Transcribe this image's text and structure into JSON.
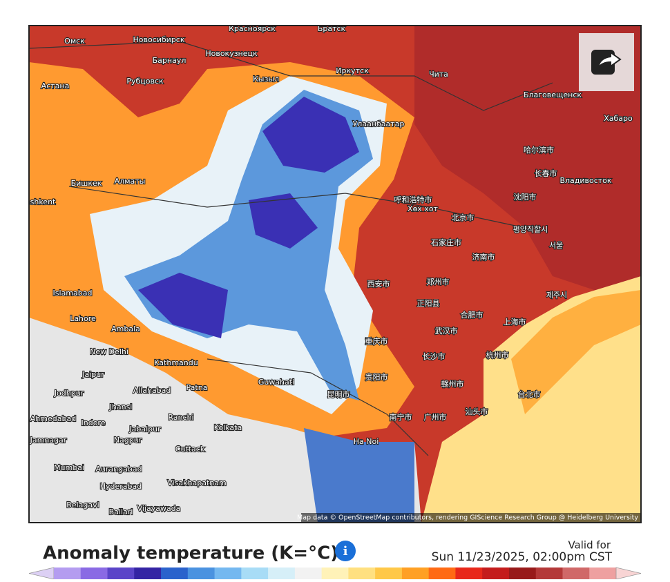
{
  "map": {
    "cities": [
      "Омск",
      "Новосибирск",
      "Красноярск",
      "Братск",
      "Барнаул",
      "Новокузнецк",
      "Кызыл",
      "Иркутск",
      "Чита",
      "Астана",
      "Рубцовск",
      "Благовещенск",
      "Хабаро",
      "Улаанбаатар",
      "哈尔滨市",
      "长春市",
      "Владивосток",
      "Бишкек",
      "Алматы",
      "shkent",
      "呼和浩特市",
      "Хөх хот",
      "北京市",
      "沈阳市",
      "평양직할시",
      "서울",
      "石家庄市",
      "济南市",
      "西安市",
      "郑州市",
      "正阳县",
      "제주시",
      "Islamabad",
      "Lahore",
      "Ambala",
      "合肥市",
      "上海市",
      "武汉市",
      "New Delhi",
      "Kathmandu",
      "重庆市",
      "长沙市",
      "杭州市",
      "Jaipur",
      "Guwahati",
      "贵阳市",
      "Jodhpur",
      "Allahabad",
      "Patna",
      "昆明市",
      "赣州市",
      "台北市",
      "Jhansi",
      "Ranchi",
      "Ahmedabad",
      "Indore",
      "南宁市",
      "广州市",
      "汕头市",
      "Jabalpur",
      "Kolkata",
      "Nagpur",
      "Jamnagar",
      "Ha Noi",
      "Cuttack",
      "Mumbai",
      "Aurangabad",
      "Hyderabad",
      "Visakhapatnam",
      "Belagavi",
      "Vijayawada",
      "Ballari"
    ],
    "attribution": "Map data © OpenStreetMap contributors, rendering GIScience Research Group @ Heidelberg University"
  },
  "legend": {
    "title": "Anomaly temperature (K=°C)",
    "valid_label": "Valid for",
    "valid_time": "Sun 11/23/2025, 02:00pm CST",
    "colors": [
      "#dcd0f4",
      "#b49cf0",
      "#8a6ae4",
      "#5a44c8",
      "#3424a4",
      "#2a62cc",
      "#4a92e0",
      "#74b8f0",
      "#a8dcf6",
      "#d6eff8",
      "#f2f2f2",
      "#fff2b8",
      "#ffe080",
      "#ffc848",
      "#ffa024",
      "#ff6a14",
      "#e8281a",
      "#c41c1c",
      "#981a1a",
      "#b43838",
      "#d06868",
      "#eea0a0",
      "#f8d4d4"
    ]
  }
}
